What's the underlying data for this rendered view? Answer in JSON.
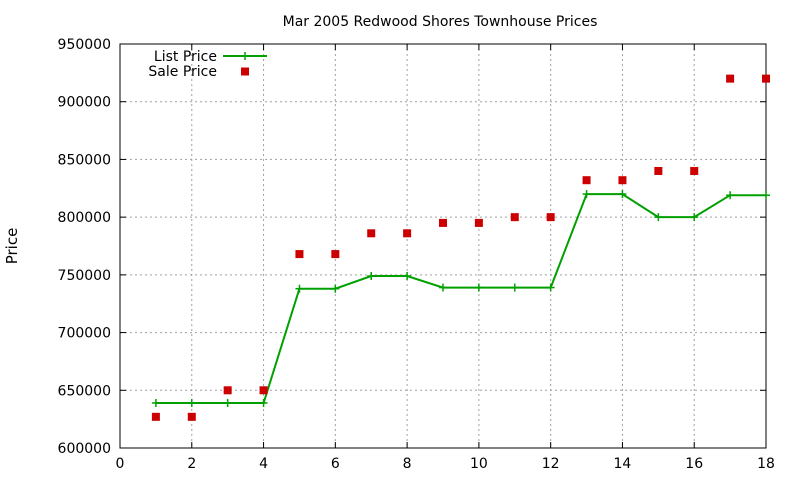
{
  "chart_data": {
    "type": "line",
    "title": "Mar 2005 Redwood Shores Townhouse Prices",
    "xlabel": "",
    "ylabel": "Price",
    "xlim": [
      0,
      18
    ],
    "ylim": [
      600000,
      950000
    ],
    "x_ticks": [
      0,
      2,
      4,
      6,
      8,
      10,
      12,
      14,
      16,
      18
    ],
    "y_ticks": [
      600000,
      650000,
      700000,
      750000,
      800000,
      850000,
      900000,
      950000
    ],
    "x_tick_labels": [
      "0",
      "2",
      "4",
      "6",
      "8",
      "10",
      "12",
      "14",
      "16",
      "18"
    ],
    "y_tick_labels": [
      "600000",
      "650000",
      "700000",
      "750000",
      "800000",
      "850000",
      "900000",
      "950000"
    ],
    "grid": true,
    "legend_position": "top-left",
    "series": [
      {
        "name": "List Price",
        "style": "line-with-plus-markers",
        "color": "#00a000",
        "x": [
          1,
          2,
          3,
          4,
          5,
          6,
          7,
          8,
          9,
          10,
          11,
          12,
          13,
          14,
          15,
          16,
          17,
          18
        ],
        "values": [
          639000,
          639000,
          639000,
          639000,
          738000,
          738000,
          749000,
          749000,
          739000,
          739000,
          739000,
          739000,
          820000,
          820000,
          800000,
          800000,
          819000,
          819000
        ]
      },
      {
        "name": "Sale Price",
        "style": "square-points",
        "color": "#cc0000",
        "x": [
          1,
          2,
          3,
          4,
          5,
          6,
          7,
          8,
          9,
          10,
          11,
          12,
          13,
          14,
          15,
          16,
          17,
          18
        ],
        "values": [
          627000,
          627000,
          650000,
          650000,
          768000,
          768000,
          786000,
          786000,
          795000,
          795000,
          800000,
          800000,
          832000,
          832000,
          840000,
          840000,
          920000,
          920000
        ]
      }
    ]
  }
}
